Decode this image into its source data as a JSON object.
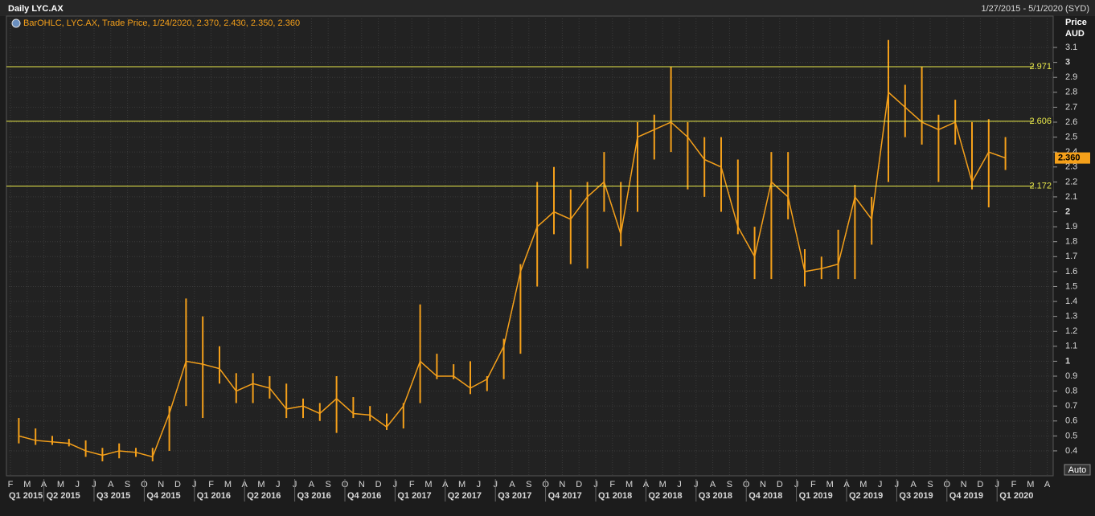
{
  "chart_data": {
    "type": "ohlc-range",
    "title": "Daily LYC.AX",
    "date_range": "1/27/2015 - 5/1/2020 (SYD)",
    "legend_text": "BarOHLC, LYC.AX, Trade Price, 1/24/2020, 2.370, 2.430, 2.350, 2.360",
    "y_axis_title": "Price",
    "y_axis_unit": "AUD",
    "auto_button": "Auto",
    "color": "#f5a01a",
    "x": [
      "2015-02",
      "2015-03",
      "2015-04",
      "2015-05",
      "2015-06",
      "2015-07",
      "2015-08",
      "2015-09",
      "2015-10",
      "2015-11",
      "2015-12",
      "2016-01",
      "2016-02",
      "2016-03",
      "2016-04",
      "2016-05",
      "2016-06",
      "2016-07",
      "2016-08",
      "2016-09",
      "2016-10",
      "2016-11",
      "2016-12",
      "2017-01",
      "2017-02",
      "2017-03",
      "2017-04",
      "2017-05",
      "2017-06",
      "2017-07",
      "2017-08",
      "2017-09",
      "2017-10",
      "2017-11",
      "2017-12",
      "2018-01",
      "2018-02",
      "2018-03",
      "2018-04",
      "2018-05",
      "2018-06",
      "2018-07",
      "2018-08",
      "2018-09",
      "2018-10",
      "2018-11",
      "2018-12",
      "2019-01",
      "2019-02",
      "2019-03",
      "2019-04",
      "2019-05",
      "2019-06",
      "2019-07",
      "2019-08",
      "2019-09",
      "2019-10",
      "2019-11",
      "2019-12",
      "2020-01"
    ],
    "low": [
      0.45,
      0.44,
      0.44,
      0.43,
      0.36,
      0.33,
      0.35,
      0.36,
      0.33,
      0.4,
      0.7,
      0.62,
      0.85,
      0.72,
      0.72,
      0.75,
      0.62,
      0.62,
      0.6,
      0.52,
      0.62,
      0.6,
      0.54,
      0.55,
      0.72,
      0.88,
      0.88,
      0.78,
      0.8,
      0.88,
      1.05,
      1.5,
      1.85,
      1.65,
      1.62,
      2.0,
      1.77,
      2.0,
      2.35,
      2.4,
      2.15,
      2.1,
      2.0,
      1.85,
      1.55,
      1.55,
      1.95,
      1.5,
      1.55,
      1.55,
      1.55,
      1.78,
      2.2,
      2.5,
      2.45,
      2.2,
      2.45,
      2.15,
      2.03,
      2.28
    ],
    "high": [
      0.62,
      0.55,
      0.5,
      0.48,
      0.47,
      0.42,
      0.45,
      0.42,
      0.42,
      0.7,
      1.42,
      1.3,
      1.1,
      0.92,
      0.92,
      0.9,
      0.85,
      0.75,
      0.72,
      0.9,
      0.76,
      0.7,
      0.65,
      0.72,
      1.38,
      1.05,
      0.98,
      1.0,
      0.9,
      1.15,
      1.65,
      2.2,
      2.3,
      2.15,
      2.2,
      2.4,
      2.2,
      2.6,
      2.65,
      2.97,
      2.6,
      2.5,
      2.5,
      2.35,
      1.9,
      2.4,
      2.4,
      1.75,
      1.7,
      1.88,
      2.18,
      2.1,
      3.15,
      2.85,
      2.97,
      2.65,
      2.75,
      2.6,
      2.62,
      2.5
    ],
    "close": [
      0.5,
      0.47,
      0.46,
      0.45,
      0.4,
      0.37,
      0.4,
      0.39,
      0.36,
      0.65,
      1.0,
      0.98,
      0.95,
      0.8,
      0.85,
      0.82,
      0.68,
      0.7,
      0.65,
      0.75,
      0.65,
      0.64,
      0.56,
      0.7,
      1.0,
      0.9,
      0.9,
      0.82,
      0.88,
      1.1,
      1.6,
      1.9,
      2.0,
      1.95,
      2.1,
      2.2,
      1.85,
      2.5,
      2.55,
      2.6,
      2.5,
      2.35,
      2.3,
      1.9,
      1.7,
      2.2,
      2.1,
      1.6,
      1.62,
      1.65,
      2.1,
      1.95,
      2.8,
      2.7,
      2.6,
      2.55,
      2.6,
      2.2,
      2.4,
      2.36
    ],
    "hlines": [
      2.971,
      2.606,
      2.172
    ],
    "hline_color": "#e8e84a",
    "last_price": {
      "value": 2.36,
      "label": "2.360"
    },
    "ylim": [
      0.233,
      3.31
    ],
    "yticks": [
      0.4,
      0.5,
      0.6,
      0.7,
      0.8,
      0.9,
      1,
      1.1,
      1.2,
      1.3,
      1.4,
      1.5,
      1.6,
      1.7,
      1.8,
      1.9,
      2,
      2.1,
      2.2,
      2.3,
      2.4,
      2.5,
      2.6,
      2.7,
      2.8,
      2.9,
      3,
      3.1
    ],
    "month_labels": [
      "F",
      "M",
      "A",
      "M",
      "J",
      "J",
      "A",
      "S",
      "O",
      "N",
      "D",
      "J",
      "F",
      "M",
      "A",
      "M",
      "J",
      "J",
      "A",
      "S",
      "O",
      "N",
      "D",
      "J",
      "F",
      "M",
      "A",
      "M",
      "J",
      "J",
      "A",
      "S",
      "O",
      "N",
      "D",
      "J",
      "F",
      "M",
      "A",
      "M",
      "J",
      "J",
      "A",
      "S",
      "O",
      "N",
      "D",
      "J",
      "F",
      "M",
      "A",
      "M",
      "J",
      "J",
      "A",
      "S",
      "O",
      "N",
      "D",
      "J",
      "F",
      "M",
      "A"
    ],
    "quarter_labels": [
      "Q1 2015",
      "Q2 2015",
      "Q3 2015",
      "Q4 2015",
      "Q1 2016",
      "Q2 2016",
      "Q3 2016",
      "Q4 2016",
      "Q1 2017",
      "Q2 2017",
      "Q3 2017",
      "Q4 2017",
      "Q1 2018",
      "Q2 2018",
      "Q3 2018",
      "Q4 2018",
      "Q1 2019",
      "Q2 2019",
      "Q3 2019",
      "Q4 2019",
      "Q1 2020"
    ],
    "grid": true
  }
}
